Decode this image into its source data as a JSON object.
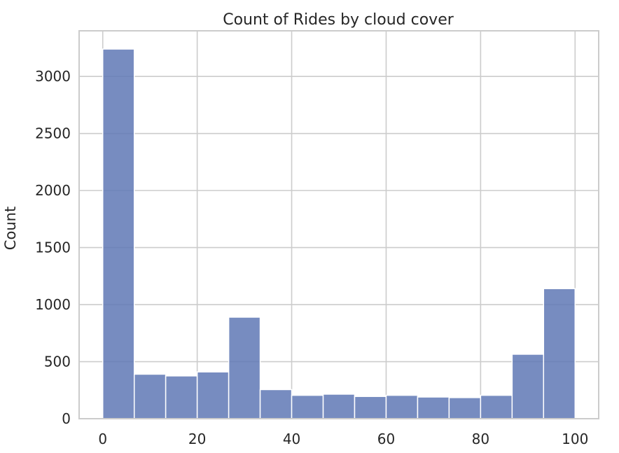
{
  "chart_data": {
    "type": "bar",
    "title": "Count of Rides by cloud cover",
    "xlabel": "",
    "ylabel": "Count",
    "xlim": [
      -5,
      105
    ],
    "ylim": [
      0,
      3400
    ],
    "grid": true,
    "bin_edges": [
      0,
      6.67,
      13.33,
      20,
      26.67,
      33.33,
      40,
      46.67,
      53.33,
      60,
      66.67,
      73.33,
      80,
      86.67,
      93.33,
      100
    ],
    "values": [
      3240,
      390,
      375,
      410,
      890,
      255,
      205,
      215,
      195,
      205,
      190,
      185,
      205,
      565,
      1140
    ],
    "x_ticks": [
      0,
      20,
      40,
      60,
      80,
      100
    ],
    "y_ticks": [
      0,
      500,
      1000,
      1500,
      2000,
      2500,
      3000
    ],
    "bar_color": "#5f78b5",
    "bar_edge_color": "#ffffff",
    "grid_color": "#cccccc",
    "frame_color": "#cccccc"
  }
}
